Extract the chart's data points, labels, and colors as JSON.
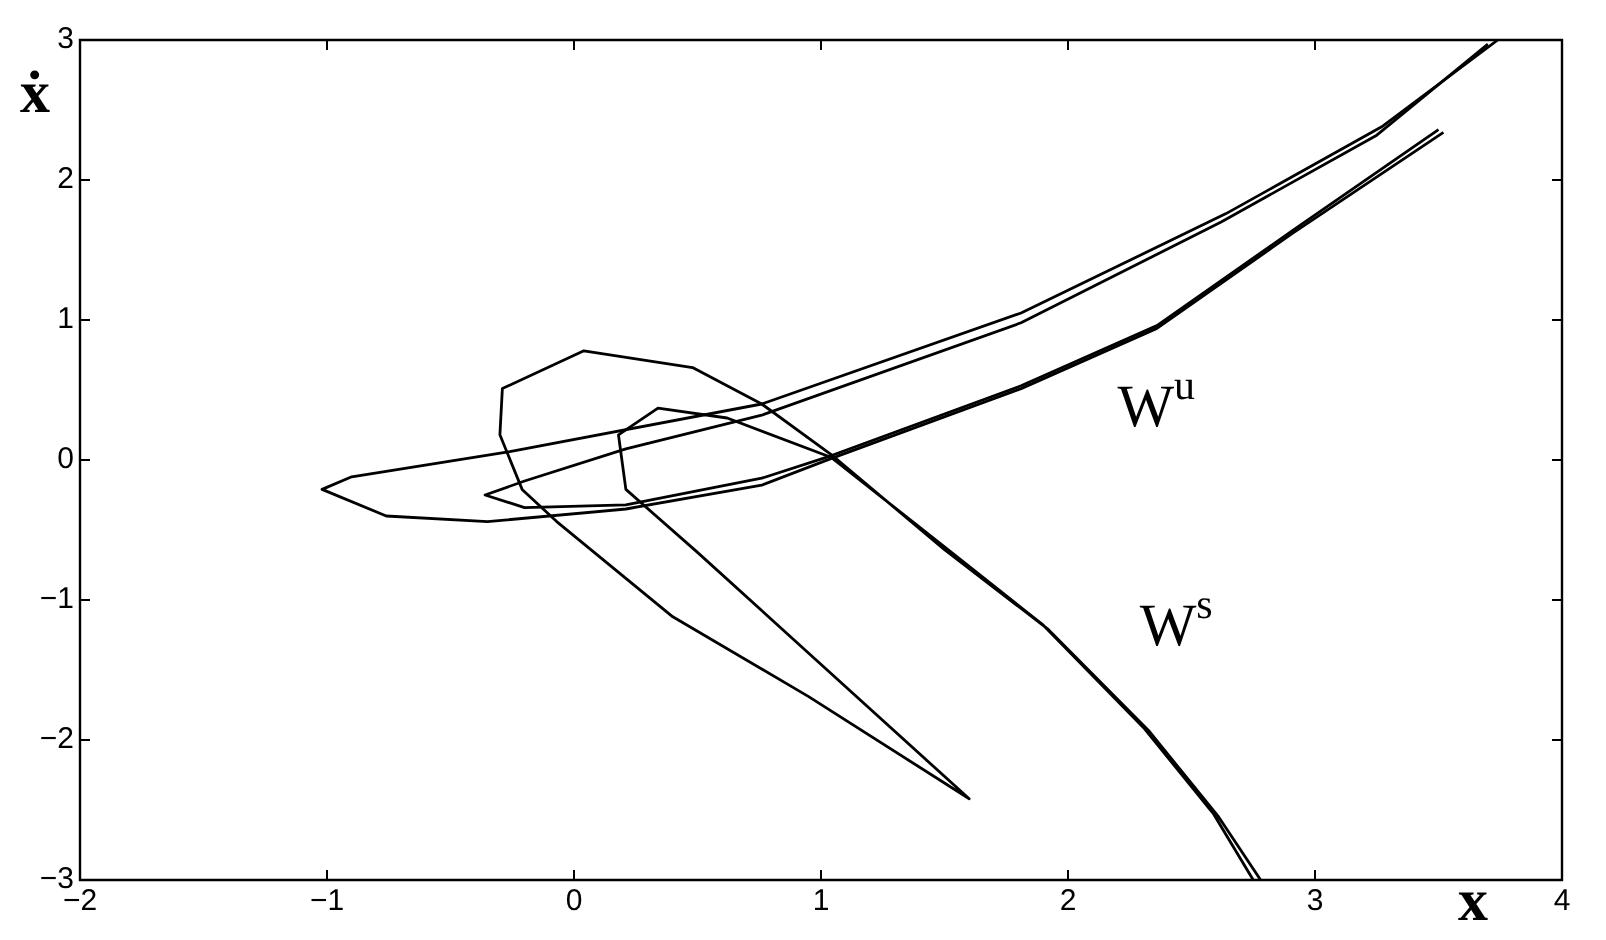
{
  "chart_data": {
    "type": "line",
    "xlabel": "x",
    "ylabel": "ẋ",
    "xlim": [
      -2,
      4
    ],
    "ylim": [
      -3,
      3
    ],
    "xticks": [
      -2,
      -1,
      0,
      1,
      2,
      3,
      4
    ],
    "yticks": [
      -3,
      -2,
      -1,
      0,
      1,
      2,
      3
    ],
    "grid": false,
    "legend": false,
    "marker": "none",
    "line_style": "solid",
    "series": [
      {
        "color": "#000000",
        "x": [
          3.52,
          2.91,
          2.36,
          1.81,
          1.04,
          0.76,
          0.21,
          -0.35,
          -0.76,
          -1.02,
          -0.9,
          -0.26,
          0.76,
          1.81,
          2.64,
          3.27,
          3.74
        ],
        "values": [
          2.34,
          1.62,
          0.94,
          0.51,
          0.01,
          -0.18,
          -0.35,
          -0.44,
          -0.4,
          -0.21,
          -0.12,
          0.06,
          0.4,
          1.05,
          1.76,
          2.38,
          3
        ]
      },
      {
        "color": "#000000",
        "x": [
          3.7,
          3.25,
          2.62,
          1.81,
          0.76,
          0.21,
          -0.2,
          -0.36,
          -0.2,
          0.21,
          0.76,
          1.04,
          1.81,
          2.36,
          2.91,
          3.5
        ],
        "values": [
          2.97,
          2.32,
          1.7,
          0.98,
          0.32,
          0.08,
          -0.15,
          -0.25,
          -0.34,
          -0.32,
          -0.13,
          0.03,
          0.53,
          0.96,
          1.64,
          2.36
        ]
      },
      {
        "color": "#000000",
        "x": [
          2.78,
          2.61,
          2.33,
          1.92,
          1.5,
          1.04,
          0.76,
          0.48,
          0.04,
          -0.29,
          -0.3,
          -0.21,
          -0.07,
          0.4,
          0.95,
          1.6,
          0.9,
          0.5,
          0.21,
          0.18,
          0.34,
          0.62,
          1.04,
          1.5,
          1.9,
          2.31,
          2.59,
          2.75
        ],
        "values": [
          -3,
          -2.55,
          -1.94,
          -1.21,
          -0.64,
          0.04,
          0.4,
          0.66,
          0.78,
          0.51,
          0.18,
          -0.21,
          -0.44,
          -1.12,
          -1.69,
          -2.42,
          -1.3,
          -0.66,
          -0.21,
          0.18,
          0.37,
          0.3,
          0.02,
          -0.62,
          -1.18,
          -1.92,
          -2.53,
          -3
        ]
      }
    ],
    "annotations": [
      "W$^{u}$",
      "W$^{s}$"
    ]
  }
}
